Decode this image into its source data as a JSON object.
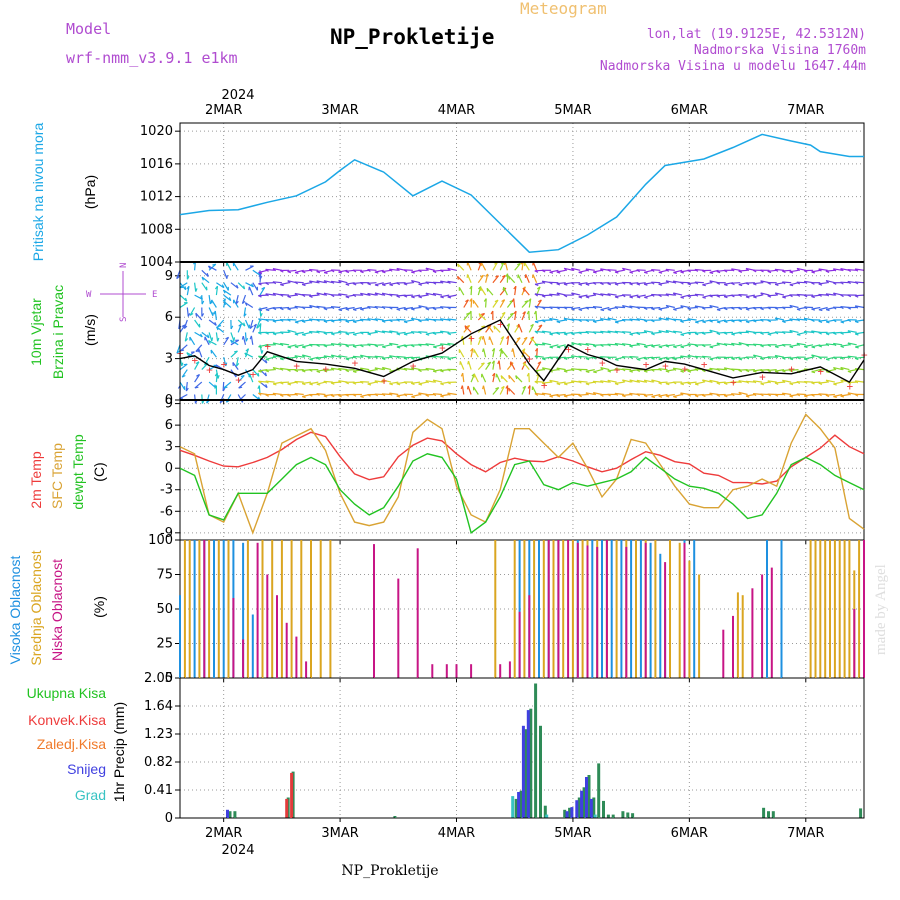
{
  "header": {
    "model_label": "Model",
    "model_version": "wrf-nmm_v3.9.1  e1km",
    "chart_kind": "Meteogram",
    "station_title": "NP_Prokletije",
    "coords": "lon,lat (19.9125E, 42.5312N)",
    "elevation": "Nadmorska Visina 1760m",
    "model_elevation": "Nadmorska Visina u modelu 1647.44m",
    "watermark": "made by Angel",
    "bottom_title": "NP_Prokletije",
    "year_top": "2024",
    "year_bottom": "2024"
  },
  "colors": {
    "pressure": "#1ba7e6",
    "temp2m": "#ee3b3b",
    "sfc": "#d9a334",
    "dewpt": "#22c322",
    "high_cloud": "#1e90e0",
    "mid_cloud": "#daa520",
    "low_cloud": "#c71585",
    "precip_total": "#2e8b57",
    "precip_conv": "#e23b3b",
    "precip_frz": "#f07a2a",
    "snow": "#4040e0",
    "graupel": "#38c3c3",
    "model_label": "#b04cd0",
    "meteogram_label": "#f0c070"
  },
  "chart_data": [
    {
      "type": "line",
      "panel": "pressure",
      "ylabel_main": "Pritisak na nivou mora",
      "unit": "(hPa)",
      "x_labels": [
        "2MAR",
        "3MAR",
        "4MAR",
        "5MAR",
        "6MAR",
        "7MAR"
      ],
      "y_ticks": [
        1004,
        1008,
        1012,
        1016,
        1020
      ],
      "ylim": [
        1004,
        1021
      ],
      "xlim": [
        0,
        141
      ],
      "x": [
        0,
        6,
        12,
        18,
        24,
        30,
        33,
        36,
        42,
        48,
        54,
        60,
        66,
        72,
        78,
        84,
        90,
        96,
        100,
        102,
        108,
        114,
        120,
        126,
        130,
        132,
        138,
        141
      ],
      "values": [
        1009.8,
        1010.3,
        1010.4,
        1011.3,
        1012.1,
        1013.8,
        1015.2,
        1016.5,
        1015.0,
        1012.1,
        1013.9,
        1012.2,
        1008.7,
        1005.2,
        1005.5,
        1007.3,
        1009.5,
        1013.5,
        1015.8,
        1016.0,
        1016.6,
        1018.0,
        1019.6,
        1018.8,
        1018.3,
        1017.5,
        1016.9,
        1016.9
      ]
    },
    {
      "type": "scatter",
      "panel": "wind",
      "ylabel_main": "10m Vjetar",
      "ylabel_sub": "Brzina i Pravac",
      "unit": "(m/s)",
      "y_ticks": [
        0,
        3,
        6,
        9
      ],
      "ylim": [
        0,
        10
      ],
      "legend_compass_n": "N",
      "legend_compass_s": "S",
      "legend_w": "W",
      "legend_e": "E",
      "speed_x": [
        0,
        3,
        6,
        9,
        12,
        15,
        18,
        24,
        30,
        36,
        42,
        48,
        54,
        60,
        66,
        72,
        75,
        80,
        84,
        87,
        90,
        96,
        100,
        104,
        108,
        114,
        120,
        126,
        132,
        138,
        141
      ],
      "speed": [
        3,
        3.2,
        2.5,
        2.2,
        1.8,
        2.2,
        3.5,
        2.8,
        2.6,
        2.3,
        1.7,
        2.8,
        3.4,
        4.8,
        5.8,
        2.6,
        1.4,
        4.0,
        3.3,
        3.0,
        2.5,
        2.2,
        2.8,
        2.6,
        2.2,
        1.6,
        2.0,
        1.9,
        2.4,
        1.3,
        2.9
      ]
    },
    {
      "type": "line",
      "panel": "temperature",
      "ylabel_a": "2m Temp",
      "ylabel_b": "SFC Temp",
      "ylabel_c": "dewpt Temp",
      "unit": "(C)",
      "y_ticks": [
        -9,
        -6,
        -3,
        0,
        3,
        6,
        9
      ],
      "ylim": [
        -10,
        9.5
      ],
      "x": [
        0,
        3,
        6,
        9,
        12,
        15,
        18,
        21,
        24,
        27,
        30,
        33,
        36,
        39,
        42,
        45,
        48,
        51,
        54,
        57,
        60,
        63,
        66,
        69,
        72,
        75,
        78,
        81,
        84,
        87,
        90,
        93,
        96,
        99,
        102,
        105,
        108,
        111,
        114,
        117,
        120,
        123,
        126,
        129,
        132,
        135,
        138,
        141
      ],
      "series": [
        {
          "name": "2m Temp",
          "key": "temp2m",
          "values": [
            2.5,
            1.8,
            1.0,
            0.3,
            0.2,
            0.8,
            1.5,
            2.6,
            4.0,
            5.0,
            4.4,
            1.6,
            -0.8,
            -1.6,
            -1.2,
            1.6,
            3.2,
            4.2,
            3.8,
            2.0,
            0.5,
            -0.5,
            0.8,
            1.4,
            1.0,
            0.9,
            1.6,
            1.0,
            0.2,
            -0.5,
            0.0,
            1.2,
            2.3,
            1.8,
            0.9,
            0.6,
            -0.7,
            -1.0,
            -2.0,
            -2.0,
            -2.2,
            -1.8,
            0.2,
            1.5,
            2.8,
            4.6,
            3.0,
            2.0
          ]
        },
        {
          "name": "SFC Temp",
          "key": "sfc",
          "values": [
            3,
            2,
            -6.5,
            -7.5,
            -3.5,
            -9,
            -3.5,
            3.5,
            4.5,
            5.5,
            2.5,
            -3.5,
            -7.5,
            -8,
            -7.5,
            -4,
            5,
            6.8,
            5.5,
            -2.5,
            -6.5,
            -7.5,
            -3,
            5.5,
            5.5,
            3.5,
            1.5,
            3.5,
            0,
            -4,
            -1.5,
            4,
            3.5,
            0.5,
            -2.5,
            -5,
            -5.5,
            -5.5,
            -3,
            -2.5,
            -1.5,
            -2.5,
            3.5,
            7.5,
            5.5,
            2.8,
            -7,
            -8.5
          ]
        },
        {
          "name": "dewpt Temp",
          "key": "dewpt",
          "values": [
            0,
            -1,
            -6.5,
            -7.2,
            -3.5,
            -3.5,
            -3.5,
            -1.5,
            0.5,
            1.5,
            0.5,
            -3,
            -5,
            -6.5,
            -5.5,
            -2.5,
            1,
            2,
            1.5,
            -1.5,
            -9,
            -7.5,
            -4,
            0.5,
            1,
            -2.3,
            -3,
            -2,
            -2.5,
            -2,
            -1.5,
            -0.5,
            1.5,
            0,
            -1.5,
            -2.5,
            -2.8,
            -3.5,
            -5,
            -7,
            -6.5,
            -3.5,
            0.5,
            1.5,
            0.5,
            -1,
            -2,
            -3
          ]
        }
      ]
    },
    {
      "type": "bar",
      "panel": "cloud",
      "ylabel_a": "Visoka Oblacnost",
      "ylabel_b": "Srednja Oblacnost",
      "ylabel_c": "Niska Oblacnost",
      "unit": "(%)",
      "y_ticks": [
        0,
        25,
        50,
        75,
        100
      ],
      "ylim": [
        0,
        100
      ],
      "series": [
        {
          "name": "Visoka Oblacnost",
          "key": "high_cloud",
          "points": [
            [
              0,
              60
            ],
            [
              3,
              100
            ],
            [
              5,
              100
            ],
            [
              7,
              100
            ],
            [
              9,
              100
            ],
            [
              11,
              100
            ],
            [
              13,
              98
            ],
            [
              15,
              46
            ],
            [
              70,
              100
            ],
            [
              72,
              100
            ],
            [
              74,
              100
            ],
            [
              76,
              100
            ],
            [
              78,
              100
            ],
            [
              82,
              100
            ],
            [
              85,
              100
            ],
            [
              87,
              100
            ],
            [
              89,
              100
            ],
            [
              91,
              100
            ],
            [
              93,
              100
            ],
            [
              95,
              100
            ],
            [
              97,
              98
            ],
            [
              99,
              90
            ],
            [
              100,
              50
            ],
            [
              104,
              100
            ],
            [
              106,
              100
            ],
            [
              121,
              100
            ],
            [
              124,
              100
            ]
          ]
        },
        {
          "name": "Srednja Oblacnost",
          "key": "mid_cloud",
          "points": [
            [
              1,
              100
            ],
            [
              2,
              100
            ],
            [
              4,
              100
            ],
            [
              6,
              100
            ],
            [
              8,
              100
            ],
            [
              10,
              100
            ],
            [
              14,
              100
            ],
            [
              17,
              100
            ],
            [
              19,
              100
            ],
            [
              21,
              100
            ],
            [
              23,
              100
            ],
            [
              25,
              100
            ],
            [
              27,
              100
            ],
            [
              29,
              100
            ],
            [
              31,
              100
            ],
            [
              65,
              100
            ],
            [
              69,
              100
            ],
            [
              71,
              100
            ],
            [
              73,
              100
            ],
            [
              75,
              100
            ],
            [
              77,
              100
            ],
            [
              79,
              100
            ],
            [
              81,
              100
            ],
            [
              83,
              100
            ],
            [
              84,
              100
            ],
            [
              86,
              100
            ],
            [
              88,
              100
            ],
            [
              90,
              100
            ],
            [
              92,
              100
            ],
            [
              94,
              100
            ],
            [
              96,
              100
            ],
            [
              98,
              100
            ],
            [
              101,
              100
            ],
            [
              103,
              98
            ],
            [
              105,
              85
            ],
            [
              107,
              75
            ],
            [
              115,
              62
            ],
            [
              116,
              60
            ],
            [
              130,
              100
            ],
            [
              131,
              100
            ],
            [
              132,
              100
            ],
            [
              133,
              100
            ],
            [
              134,
              100
            ],
            [
              135,
              100
            ],
            [
              136,
              100
            ],
            [
              137,
              100
            ],
            [
              138,
              100
            ],
            [
              139,
              78
            ],
            [
              140,
              100
            ]
          ]
        },
        {
          "name": "Niska Oblacnost",
          "key": "low_cloud",
          "points": [
            [
              5,
              100
            ],
            [
              11,
              58
            ],
            [
              13,
              28
            ],
            [
              16,
              98
            ],
            [
              18,
              75
            ],
            [
              20,
              60
            ],
            [
              22,
              40
            ],
            [
              24,
              30
            ],
            [
              26,
              12
            ],
            [
              40,
              97
            ],
            [
              45,
              72
            ],
            [
              49,
              94
            ],
            [
              52,
              10
            ],
            [
              55,
              10
            ],
            [
              57,
              10
            ],
            [
              60,
              10
            ],
            [
              66,
              10
            ],
            [
              68,
              12
            ],
            [
              70,
              48
            ],
            [
              72,
              60
            ],
            [
              76,
              100
            ],
            [
              78,
              100
            ],
            [
              80,
              100
            ],
            [
              82,
              98
            ],
            [
              84,
              96
            ],
            [
              86,
              95
            ],
            [
              88,
              100
            ],
            [
              92,
              95
            ],
            [
              96,
              98
            ],
            [
              100,
              84
            ],
            [
              104,
              98
            ],
            [
              112,
              35
            ],
            [
              114,
              45
            ],
            [
              118,
              65
            ],
            [
              120,
              75
            ],
            [
              122,
              80
            ],
            [
              139,
              50
            ],
            [
              141,
              100
            ]
          ]
        }
      ]
    },
    {
      "type": "bar",
      "panel": "precip",
      "ylabel": "1hr Precip (mm)",
      "legend": [
        "Ukupna Kisa",
        "Konvek.Kisa",
        "Zaledj.Kisa",
        "Snijeg",
        "Grad"
      ],
      "y_ticks": [
        0,
        0.41,
        0.82,
        1.23,
        1.64,
        2.05
      ],
      "ylim": [
        0,
        2.05
      ],
      "x_labels": [
        "2MAR",
        "3MAR",
        "4MAR",
        "5MAR",
        "6MAR",
        "7MAR"
      ],
      "series": [
        {
          "name": "Ukupna Kisa",
          "key": "precip_total",
          "points": [
            [
              10,
              0.1
            ],
            [
              11,
              0.1
            ],
            [
              22,
              0.3
            ],
            [
              23,
              0.68
            ],
            [
              44,
              0.03
            ],
            [
              69,
              0.28
            ],
            [
              70,
              0.4
            ],
            [
              71,
              1.3
            ],
            [
              72,
              1.6
            ],
            [
              73,
              1.97
            ],
            [
              74,
              1.35
            ],
            [
              75,
              0.18
            ],
            [
              79,
              0.12
            ],
            [
              80,
              0.15
            ],
            [
              82,
              0.3
            ],
            [
              83,
              0.45
            ],
            [
              84,
              0.63
            ],
            [
              85,
              0.3
            ],
            [
              86,
              0.8
            ],
            [
              87,
              0.25
            ],
            [
              88,
              0.05
            ],
            [
              89,
              0.05
            ],
            [
              91,
              0.1
            ],
            [
              92,
              0.08
            ],
            [
              93,
              0.07
            ],
            [
              120,
              0.15
            ],
            [
              121,
              0.1
            ],
            [
              122,
              0.1
            ],
            [
              140,
              0.14
            ]
          ]
        },
        {
          "name": "Konvek.Kisa",
          "key": "precip_conv",
          "points": [
            [
              22,
              0.28
            ],
            [
              23,
              0.66
            ]
          ]
        },
        {
          "name": "Snijeg",
          "key": "snow",
          "points": [
            [
              10,
              0.12
            ],
            [
              70,
              0.38
            ],
            [
              71,
              1.35
            ],
            [
              72,
              1.58
            ],
            [
              80,
              0.1
            ],
            [
              81,
              0.16
            ],
            [
              82,
              0.26
            ],
            [
              83,
              0.4
            ],
            [
              84,
              0.6
            ],
            [
              85,
              0.28
            ]
          ]
        },
        {
          "name": "Grad",
          "key": "graupel",
          "points": [
            [
              69,
              0.32
            ],
            [
              76,
              0.05
            ],
            [
              86,
              0.05
            ]
          ]
        }
      ]
    }
  ]
}
